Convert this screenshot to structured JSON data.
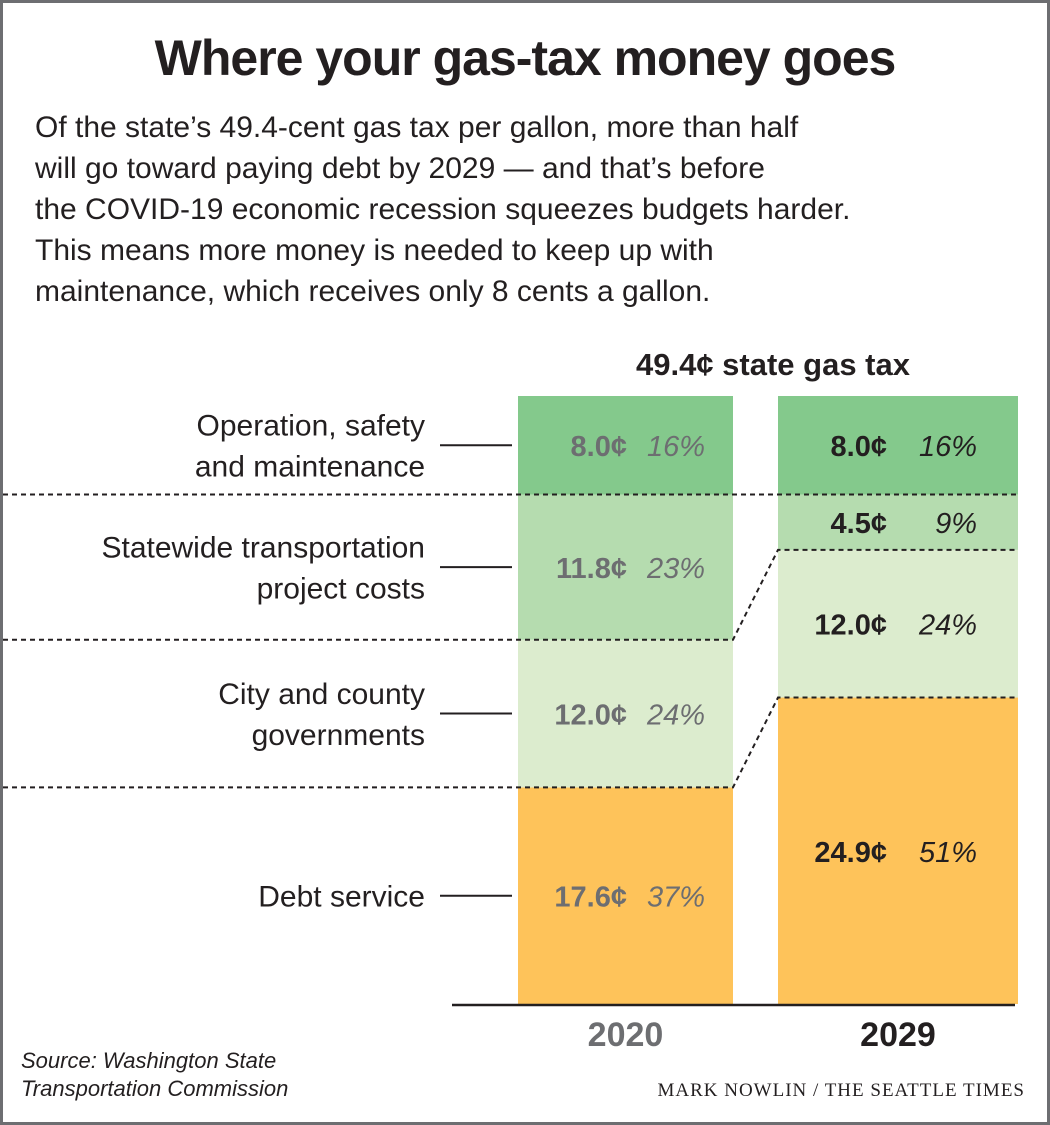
{
  "title": "Where your gas-tax money goes",
  "subtitle_lines": [
    "Of the state’s 49.4-cent gas tax per gallon, more than half",
    "will go toward paying debt by 2029 — and that’s before",
    "the COVID-19 economic recession squeezes budgets harder.",
    "This means more money is needed to keep up with",
    "maintenance, which receives only 8 cents a gallon."
  ],
  "source_lines": [
    "Source: Washington State",
    "Transportation Commission"
  ],
  "credit": "MARK NOWLIN / THE SEATTLE TIMES",
  "chart_data": {
    "type": "bar",
    "stacked": true,
    "title": "49.4¢ state gas tax",
    "unit": "cents per gallon",
    "ylim": [
      0,
      49.4
    ],
    "categories": [
      "2020",
      "2029"
    ],
    "category_colors": [
      "#6d6e71",
      "#231f20"
    ],
    "series": [
      {
        "name": "Debt service",
        "label_lines": [
          "Debt service"
        ],
        "color": "#fec35a",
        "values": [
          17.6,
          24.9
        ],
        "value_labels": [
          "17.6¢",
          "24.9¢"
        ],
        "pct_labels": [
          "37%",
          "51%"
        ]
      },
      {
        "name": "City and county governments",
        "label_lines": [
          "City and county",
          "governments"
        ],
        "color": "#dcecce",
        "values": [
          12.0,
          12.0
        ],
        "value_labels": [
          "12.0¢",
          "12.0¢"
        ],
        "pct_labels": [
          "24%",
          "24%"
        ]
      },
      {
        "name": "Statewide transportation project costs",
        "label_lines": [
          "Statewide transportation",
          "project costs"
        ],
        "color": "#b5dcaf",
        "values": [
          11.8,
          4.5
        ],
        "value_labels": [
          "11.8¢",
          "4.5¢"
        ],
        "pct_labels": [
          "23%",
          "9%"
        ]
      },
      {
        "name": "Operation, safety and maintenance",
        "label_lines": [
          "Operation, safety",
          "and maintenance"
        ],
        "color": "#84c98c",
        "values": [
          8.0,
          8.0
        ],
        "value_labels": [
          "8.0¢",
          "8.0¢"
        ],
        "pct_labels": [
          "16%",
          "16%"
        ]
      }
    ]
  }
}
